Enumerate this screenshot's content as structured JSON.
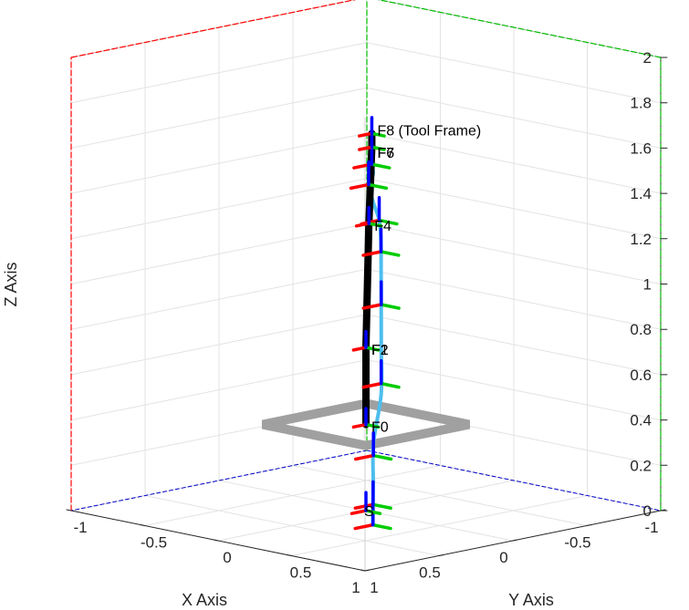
{
  "chart_data": {
    "type": "line",
    "title": "",
    "xlabel": "X Axis",
    "ylabel": "Y Axis",
    "zlabel": "Z Axis",
    "xlim": [
      -1,
      1
    ],
    "ylim": [
      -1,
      1
    ],
    "zlim": [
      0,
      2
    ],
    "grid": true,
    "x_ticks": [
      "-1",
      "-0.5",
      "0",
      "0.5",
      "1"
    ],
    "y_ticks": [
      "-1",
      "-0.5",
      "0",
      "0.5",
      "1"
    ],
    "z_ticks": [
      "0",
      "0.2",
      "0.4",
      "0.6",
      "0.8",
      "1",
      "1.2",
      "1.4",
      "1.6",
      "1.8",
      "2"
    ],
    "colors": {
      "trajectory": "#4dbeee",
      "robot_link": "#000000",
      "base_plate": "#a0a0a0",
      "frame_x": "#ff0000",
      "frame_y": "#00cc00",
      "frame_z": "#0000ff",
      "grid": "#e3e3e3",
      "axis_x": "#0000cc",
      "axis_y": "#00bb00",
      "axis_z": "#ff0000"
    },
    "frame_labels": [
      {
        "text": "S",
        "x": 0,
        "y": 0,
        "z": 0
      },
      {
        "text": "F0",
        "x": 0,
        "y": 0,
        "z": 0.38
      },
      {
        "text": "F2",
        "x": 0,
        "y": 0,
        "z": 0.72
      },
      {
        "text": "F1",
        "x": 0,
        "y": 0,
        "z": 0.72
      },
      {
        "text": "F4",
        "x": 0,
        "y": 0.02,
        "z": 1.27
      },
      {
        "text": "F6",
        "x": 0,
        "y": 0.04,
        "z": 1.61
      },
      {
        "text": "F7",
        "x": 0,
        "y": 0.04,
        "z": 1.61
      },
      {
        "text": "F8 (Tool Frame)",
        "x": 0,
        "y": 0.04,
        "z": 1.67
      }
    ],
    "robot_links": [
      {
        "x": 0,
        "y": 0,
        "z": 0.38
      },
      {
        "x": 0,
        "y": 0,
        "z": 0.72
      },
      {
        "x": 0,
        "y": 0.02,
        "z": 1.27
      },
      {
        "x": 0,
        "y": 0.04,
        "z": 1.61
      },
      {
        "x": 0,
        "y": 0.04,
        "z": 1.67
      }
    ],
    "base_plate": {
      "z": 0.38,
      "half_size_x": 0.35,
      "half_size_y": 0.35
    },
    "trajectory": [
      {
        "x": 0.06,
        "y": 0.1,
        "z": 1.55
      },
      {
        "x": 0.15,
        "y": 0.2,
        "z": 1.53
      },
      {
        "x": 0.22,
        "y": 0.24,
        "z": 1.5
      },
      {
        "x": 0.12,
        "y": 0.17,
        "z": 1.4
      },
      {
        "x": -0.05,
        "y": 0.04,
        "z": 1.28
      },
      {
        "x": -0.3,
        "y": -0.2,
        "z": 1.13
      },
      {
        "x": -0.52,
        "y": -0.42,
        "z": 0.95
      },
      {
        "x": -0.65,
        "y": -0.55,
        "z": 0.75
      },
      {
        "x": -0.67,
        "y": -0.57,
        "z": 0.55
      },
      {
        "x": -0.55,
        "y": -0.45,
        "z": 0.38
      },
      {
        "x": -0.25,
        "y": -0.2,
        "z": 0.24
      },
      {
        "x": 0.05,
        "y": 0.1,
        "z": 0.15
      },
      {
        "x": 0.25,
        "y": 0.3,
        "z": 0.1
      },
      {
        "x": 0.4,
        "y": 0.45,
        "z": 0.05
      }
    ],
    "trajectory_frames": [
      {
        "x": 0.06,
        "y": 0.1,
        "z": 1.55
      },
      {
        "x": 0.22,
        "y": 0.24,
        "z": 1.5
      },
      {
        "x": -0.05,
        "y": 0.04,
        "z": 1.28
      },
      {
        "x": -0.4,
        "y": -0.3,
        "z": 1.05
      },
      {
        "x": -0.65,
        "y": -0.55,
        "z": 0.75
      },
      {
        "x": -0.58,
        "y": -0.48,
        "z": 0.42
      },
      {
        "x": -0.15,
        "y": -0.1,
        "z": 0.21
      },
      {
        "x": 0.25,
        "y": 0.3,
        "z": 0.1
      },
      {
        "x": 0.4,
        "y": 0.45,
        "z": 0.05
      }
    ]
  }
}
